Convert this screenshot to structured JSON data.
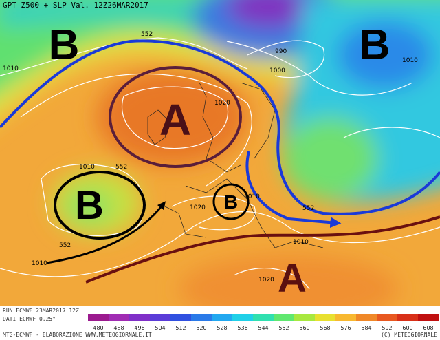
{
  "header": {
    "title": "GPT Z500 + SLP Val. 12Z26MAR2017"
  },
  "map": {
    "systems": [
      "B",
      "B",
      "A",
      "B",
      "B",
      "A"
    ],
    "isobar_labels": [
      "552",
      "1010",
      "990",
      "1000",
      "1010",
      "1020",
      "1010",
      "552",
      "1020",
      "1010",
      "552",
      "552",
      "1010",
      "1020",
      "1010"
    ]
  },
  "legend": {
    "labels": [
      480,
      488,
      496,
      504,
      512,
      520,
      528,
      536,
      544,
      552,
      560,
      568,
      576,
      584,
      592,
      600,
      608
    ],
    "colors": [
      "#9b1a8f",
      "#a02cb3",
      "#8030c8",
      "#5a3cd8",
      "#3050e0",
      "#2a7ae8",
      "#22a8f0",
      "#20d0e8",
      "#30e0b0",
      "#60e870",
      "#a8e840",
      "#e8e030",
      "#f8b830",
      "#f08828",
      "#e85820",
      "#d83018",
      "#c01010"
    ]
  },
  "footer": {
    "run": "RUN ECMWF 23MAR2017 12Z",
    "data": "DATI ECMWF 0.25°",
    "credit": "MTG-ECMWF - ELABORAZIONE WWW.METEOGIORNALE.IT",
    "copyright": "(C) METEOGIORNALE"
  }
}
